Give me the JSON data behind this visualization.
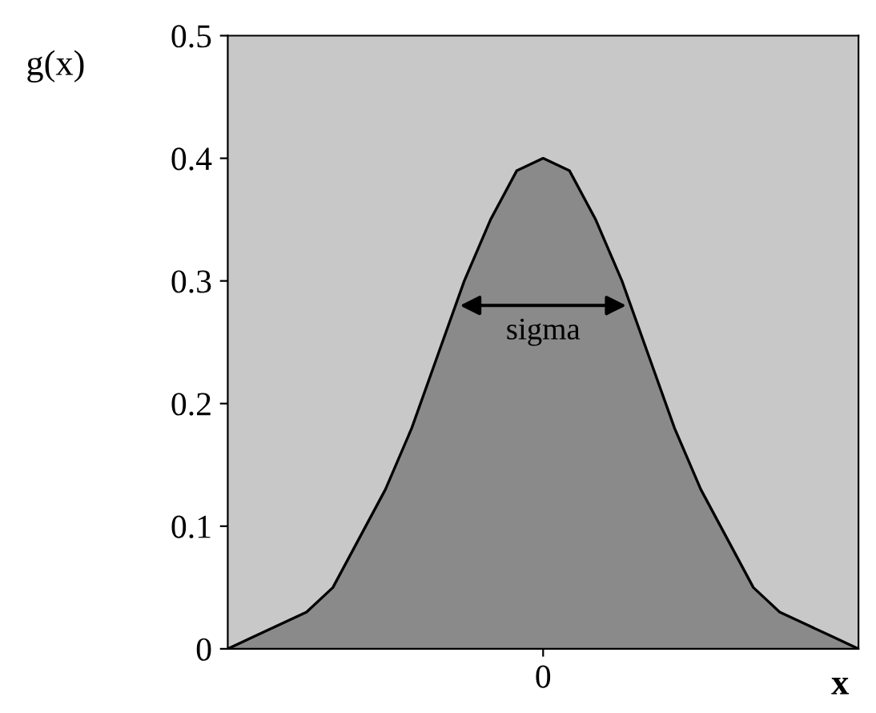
{
  "chart_data": {
    "type": "area",
    "xlabel": "x",
    "ylabel": "g(x)",
    "categories": [
      null,
      null,
      null,
      null,
      null,
      null,
      null,
      null,
      null,
      null,
      null,
      null,
      "0",
      null,
      null,
      null,
      null,
      null,
      null,
      null,
      null,
      null,
      null,
      null,
      null
    ],
    "series": [
      {
        "color": "#7a7a7a",
        "values": [
          0.0,
          0.01,
          0.02,
          0.03,
          0.05,
          0.09,
          0.13,
          0.18,
          0.24,
          0.3,
          0.35,
          0.39,
          0.4,
          0.39,
          0.35,
          0.3,
          0.24,
          0.18,
          0.13,
          0.09,
          0.05,
          0.03,
          0.02,
          0.01,
          0.0
        ]
      }
    ],
    "ylim": [
      0,
      0.5
    ],
    "yticks": [
      0,
      0.1,
      0.2,
      0.3,
      0.4,
      0.5
    ],
    "annotations": [
      "sigma"
    ],
    "grid": false,
    "legend": false
  }
}
